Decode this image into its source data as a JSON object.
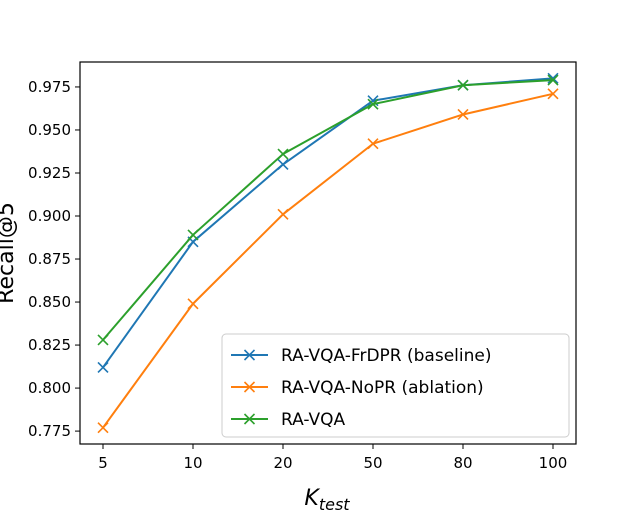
{
  "chart_data": {
    "type": "line",
    "title": "",
    "xlabel_main": "K",
    "xlabel_sub": "test",
    "ylabel": "Recall@5",
    "categories": [
      "5",
      "10",
      "20",
      "50",
      "80",
      "100"
    ],
    "ylim": [
      0.7675,
      0.9895
    ],
    "yticks": [
      "0.775",
      "0.800",
      "0.825",
      "0.850",
      "0.875",
      "0.900",
      "0.925",
      "0.950",
      "0.975"
    ],
    "grid": false,
    "legend_position": "lower-right",
    "marker": "x",
    "series": [
      {
        "name": "RA-VQA-FrDPR (baseline)",
        "color": "#1f77b4",
        "values": [
          0.812,
          0.885,
          0.93,
          0.967,
          0.976,
          0.98
        ]
      },
      {
        "name": "RA-VQA-NoPR (ablation)",
        "color": "#ff7f0e",
        "values": [
          0.777,
          0.849,
          0.901,
          0.942,
          0.959,
          0.971
        ]
      },
      {
        "name": "RA-VQA",
        "color": "#2ca02c",
        "values": [
          0.828,
          0.889,
          0.936,
          0.965,
          0.976,
          0.979
        ]
      }
    ]
  }
}
